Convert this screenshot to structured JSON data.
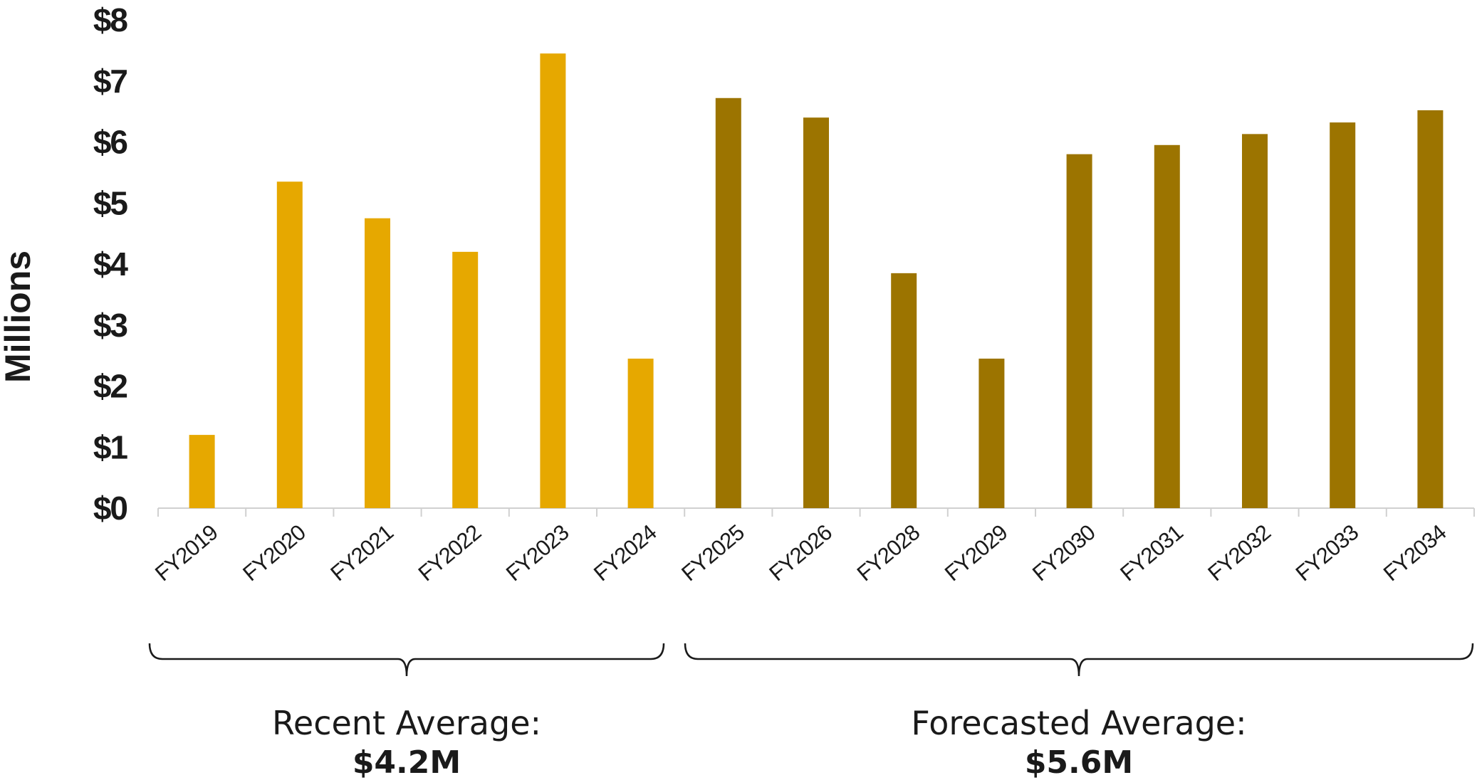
{
  "chart_data": {
    "type": "bar",
    "ylabel": "Millions",
    "ylim": [
      0,
      8
    ],
    "yticks": [
      "$0",
      "$1",
      "$2",
      "$3",
      "$4",
      "$5",
      "$6",
      "$7",
      "$8"
    ],
    "categories": [
      "FY2019",
      "FY2020",
      "FY2021",
      "FY2022",
      "FY2023",
      "FY2024",
      "FY2025",
      "FY2026",
      "FY2028",
      "FY2029",
      "FY2030",
      "FY2031",
      "FY2032",
      "FY2033",
      "FY2034"
    ],
    "values": [
      1.2,
      5.35,
      4.75,
      4.2,
      7.45,
      2.45,
      6.72,
      6.4,
      3.85,
      2.45,
      5.8,
      5.95,
      6.13,
      6.32,
      6.52
    ],
    "bar_colors": [
      "#e6a800",
      "#e6a800",
      "#e6a800",
      "#e6a800",
      "#e6a800",
      "#e6a800",
      "#9c7400",
      "#9c7400",
      "#9c7400",
      "#9c7400",
      "#9c7400",
      "#9c7400",
      "#9c7400",
      "#9c7400",
      "#9c7400"
    ],
    "groups": [
      {
        "label": "Recent Average:",
        "value": "$4.2M",
        "from": 0,
        "to": 5
      },
      {
        "label": "Forecasted Average:",
        "value": "$5.6M",
        "from": 6,
        "to": 14
      }
    ],
    "grid": false,
    "legend": "none"
  }
}
